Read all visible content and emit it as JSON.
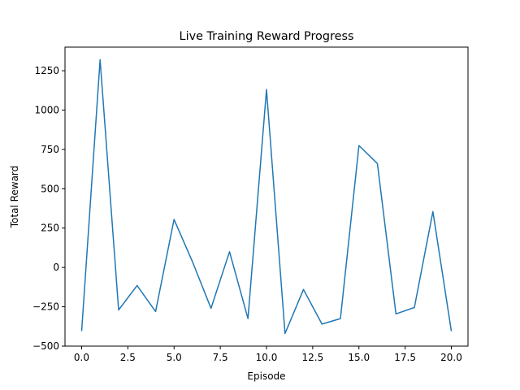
{
  "chart_data": {
    "type": "line",
    "title": "Live Training Reward Progress",
    "xlabel": "Episode",
    "ylabel": "Total Reward",
    "xlim": [
      -0.9,
      20.9
    ],
    "ylim": [
      -500,
      1400
    ],
    "xticks": [
      0.0,
      2.5,
      5.0,
      7.5,
      10.0,
      12.5,
      15.0,
      17.5,
      20.0
    ],
    "xtick_labels": [
      "0.0",
      "2.5",
      "5.0",
      "7.5",
      "10.0",
      "12.5",
      "15.0",
      "17.5",
      "20.0"
    ],
    "yticks": [
      -500,
      -250,
      0,
      250,
      500,
      750,
      1000,
      1250
    ],
    "ytick_labels": [
      "−500",
      "−250",
      "0",
      "250",
      "500",
      "750",
      "1000",
      "1250"
    ],
    "grid": false,
    "series": [
      {
        "color": "#1f77b4",
        "x": [
          0,
          1,
          2,
          3,
          4,
          5,
          6,
          7,
          8,
          9,
          10,
          11,
          12,
          13,
          14,
          15,
          16,
          17,
          18,
          19,
          20
        ],
        "values": [
          -405,
          1320,
          -270,
          -115,
          -280,
          305,
          35,
          -260,
          100,
          -325,
          1130,
          -420,
          -140,
          -360,
          -325,
          775,
          660,
          -295,
          -255,
          355,
          -405
        ]
      }
    ]
  }
}
